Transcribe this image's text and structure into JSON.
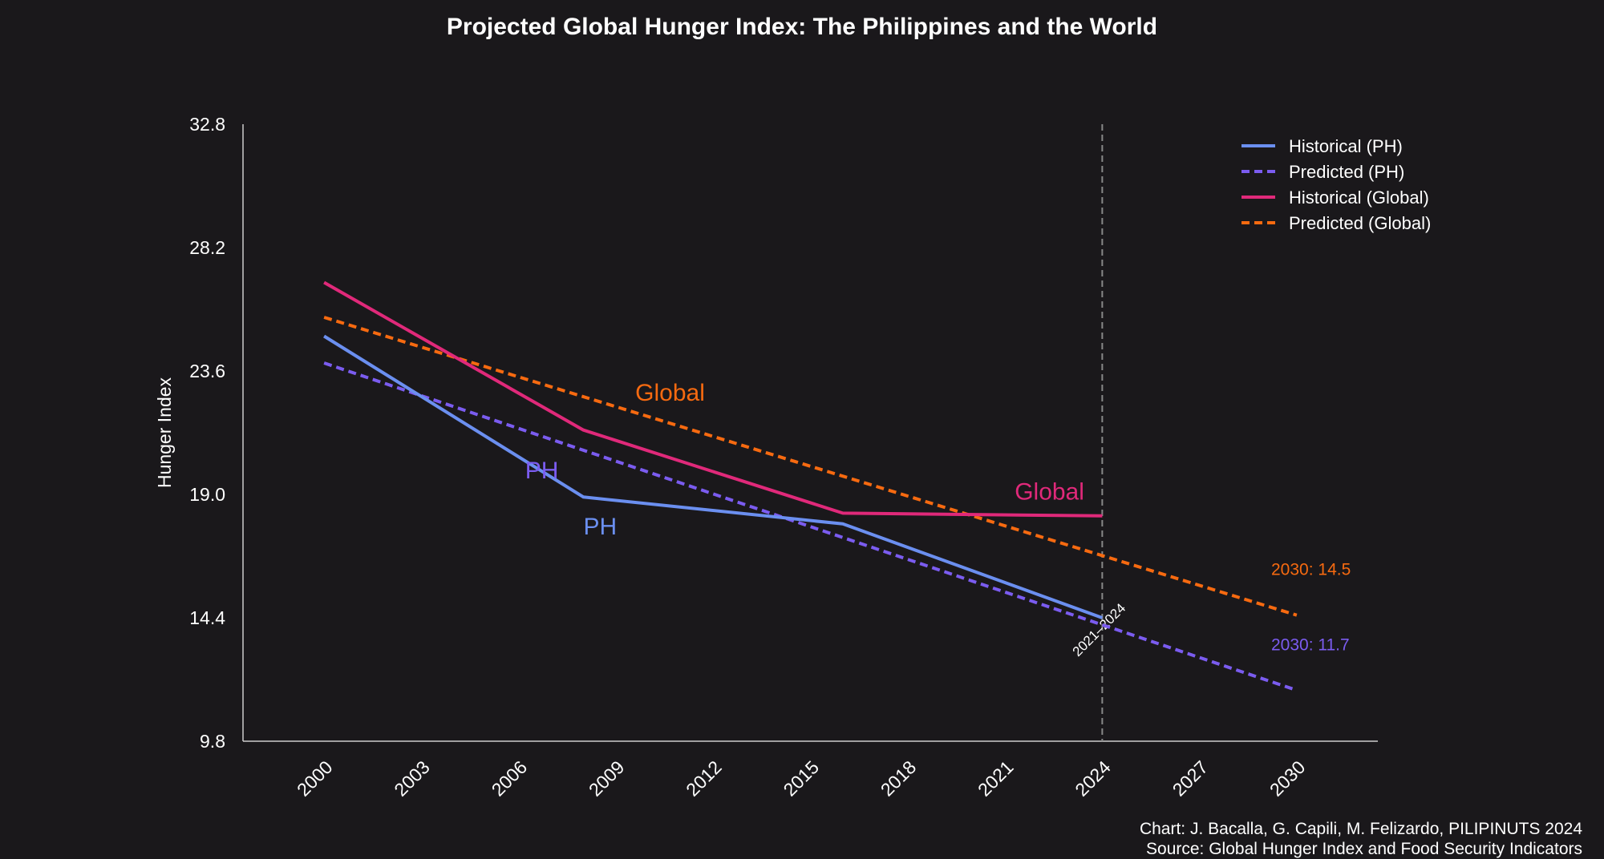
{
  "chart_data": {
    "type": "line",
    "title": "Projected Global Hunger Index: The Philippines and the World",
    "xlabel": "",
    "ylabel": "Hunger Index",
    "xlim": [
      1997.5,
      2032.5
    ],
    "ylim": [
      9.8,
      32.8
    ],
    "x_ticks": [
      "2000",
      "2003",
      "2006",
      "2009",
      "2012",
      "2015",
      "2018",
      "2021",
      "2024",
      "2027",
      "2030"
    ],
    "y_ticks": [
      "9.8",
      "14.4",
      "19.0",
      "23.6",
      "28.2",
      "32.8"
    ],
    "grid": false,
    "legend_position": "top-right",
    "series": [
      {
        "name": "Historical (PH)",
        "style": "solid",
        "color": "#6b8ff0",
        "x": [
          2000,
          2008,
          2016,
          2024
        ],
        "y": [
          24.9,
          18.9,
          17.9,
          14.4
        ]
      },
      {
        "name": "Predicted (PH)",
        "style": "dashed",
        "color": "#7b5cf0",
        "x": [
          2000,
          2030
        ],
        "y": [
          23.9,
          11.7
        ]
      },
      {
        "name": "Historical (Global)",
        "style": "solid",
        "color": "#e0297a",
        "x": [
          2000,
          2008,
          2016,
          2024
        ],
        "y": [
          26.9,
          21.4,
          18.3,
          18.2
        ]
      },
      {
        "name": "Predicted (Global)",
        "style": "dashed",
        "color": "#f76a10",
        "x": [
          2000,
          2030
        ],
        "y": [
          25.6,
          14.5
        ]
      }
    ],
    "vertical_line": {
      "x": 2024,
      "label": "2021–2024",
      "color": "#888888"
    },
    "annotations": [
      {
        "text": "Global",
        "x": 2009.6,
        "y": 22.5,
        "color": "#f76a10"
      },
      {
        "text": "PH",
        "x": 2006.2,
        "y": 19.6,
        "color": "#7b5cf0"
      },
      {
        "text": "PH",
        "x": 2008.0,
        "y": 17.5,
        "color": "#6b8ff0"
      },
      {
        "text": "Global",
        "x": 2021.3,
        "y": 18.8,
        "color": "#e0297a"
      }
    ],
    "end_labels": [
      {
        "text": "2030: 14.5",
        "y": 16.2,
        "color": "#f76a10"
      },
      {
        "text": "2030: 11.7",
        "y": 13.4,
        "color": "#7b5cf0"
      }
    ]
  },
  "footer": {
    "chart_credit": "Chart: J. Bacalla, G. Capili, M. Felizardo, PILIPINUTS 2024",
    "source": "Source: Global Hunger Index and Food Security Indicators"
  }
}
